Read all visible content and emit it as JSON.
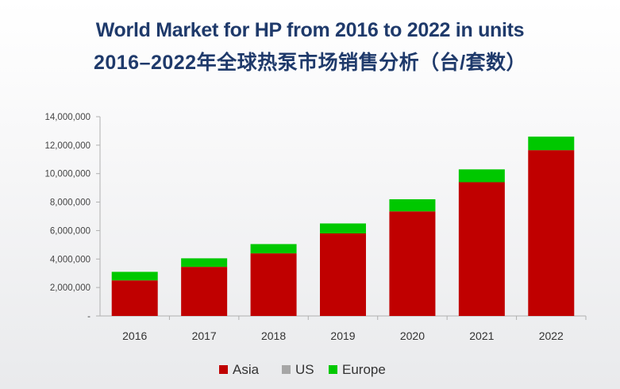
{
  "title_line1": "World Market for HP from 2016 to 2022 in units",
  "title_line2": "2016–2022年全球热泵市场销售分析（台/套数）",
  "chart_data": {
    "type": "bar",
    "stacked": true,
    "categories": [
      "2016",
      "2017",
      "2018",
      "2019",
      "2020",
      "2021",
      "2022"
    ],
    "series": [
      {
        "name": "Asia",
        "color": "#c00000",
        "values": [
          2500000,
          3450000,
          4400000,
          5800000,
          7350000,
          9400000,
          11650000
        ]
      },
      {
        "name": "US",
        "color": "#a6a6a6",
        "values": [
          0,
          0,
          0,
          0,
          0,
          0,
          0
        ]
      },
      {
        "name": "Europe",
        "color": "#00c800",
        "values": [
          600000,
          600000,
          650000,
          700000,
          850000,
          900000,
          950000
        ]
      }
    ],
    "y_ticks": [
      "-",
      "2,000,000",
      "4,000,000",
      "6,000,000",
      "8,000,000",
      "10,000,000",
      "12,000,000",
      "14,000,000"
    ],
    "ylim": [
      0,
      14000000
    ],
    "grid": false,
    "legend_position": "bottom"
  }
}
